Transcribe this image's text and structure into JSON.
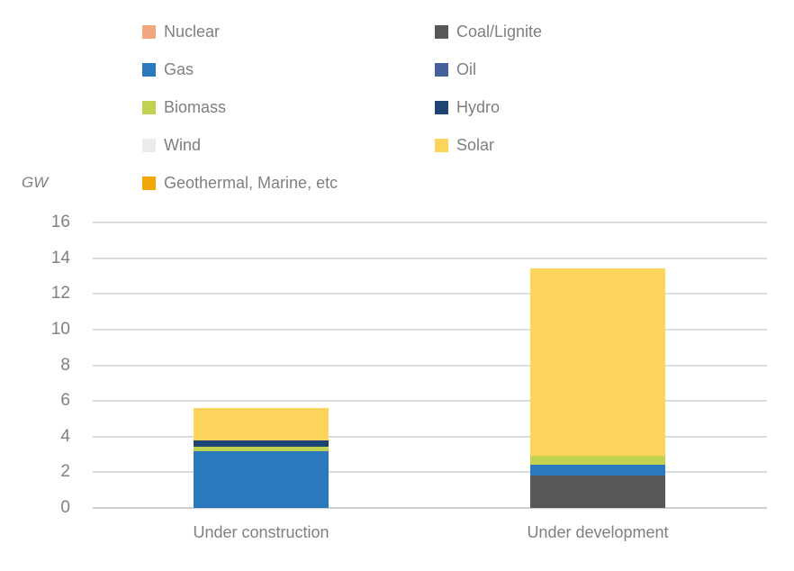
{
  "unit_label": "GW",
  "chart_data": {
    "type": "bar",
    "stacked": true,
    "title": "",
    "ylabel": "GW",
    "xlabel": "",
    "categories": [
      "Under construction",
      "Under development"
    ],
    "series": [
      {
        "name": "Nuclear",
        "color": "#F4A67E",
        "values": [
          0,
          0
        ]
      },
      {
        "name": "Coal/Lignite",
        "color": "#575757",
        "values": [
          0,
          1.8
        ]
      },
      {
        "name": "Gas",
        "color": "#2A79BD",
        "values": [
          3.2,
          0.6
        ]
      },
      {
        "name": "Oil",
        "color": "#44619C",
        "values": [
          0,
          0
        ]
      },
      {
        "name": "Biomass",
        "color": "#C0D24F",
        "values": [
          0.25,
          0.55
        ]
      },
      {
        "name": "Hydro",
        "color": "#1D4573",
        "values": [
          0.35,
          0
        ]
      },
      {
        "name": "Wind",
        "color": "#EBEBEB",
        "values": [
          0,
          0
        ]
      },
      {
        "name": "Solar",
        "color": "#FCD45C",
        "values": [
          1.8,
          10.5
        ]
      },
      {
        "name": "Geothermal, Marine, etc",
        "color": "#F3A705",
        "values": [
          0,
          0
        ]
      }
    ],
    "totals": [
      5.6,
      13.45
    ],
    "ylim": [
      0,
      16
    ],
    "ytick_step": 2,
    "grid": true,
    "grid_color": "#DBDBDB",
    "zero_line_color": "#CFCFCF",
    "axis_text_color": "#7F7F7F",
    "legend_position": "top"
  }
}
